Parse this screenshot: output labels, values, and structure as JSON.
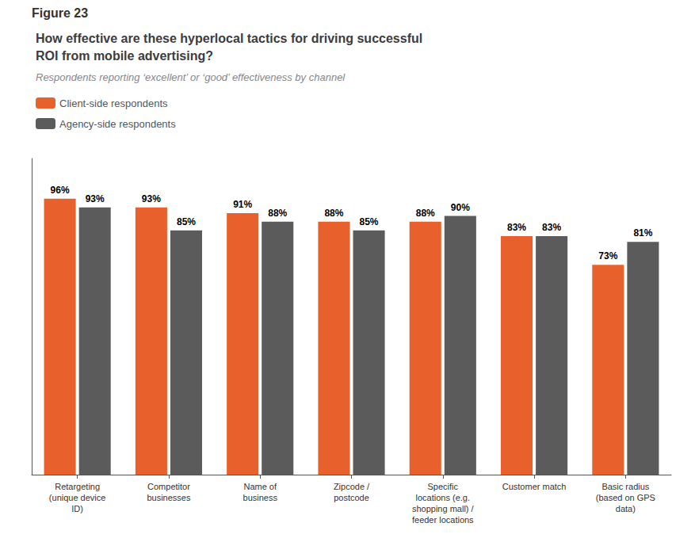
{
  "chart_data": {
    "type": "bar",
    "annotations": [
      "Figure 23"
    ],
    "title": "How effective are these hyperlocal tactics for driving successful\nROI from mobile advertising?",
    "subtitle": "Respondents reporting ‘excellent’ or ‘good’ effectiveness by channel",
    "categories": [
      "Retargeting\n(unique device\nID)",
      "Competitor\nbusinesses",
      "Name of\nbusiness",
      "Zipcode /\npostcode",
      "Specific\nlocations (e.g.\nshopping mall) /\nfeeder locations",
      "Customer match",
      "Basic radius\n(based on GPS\ndata)"
    ],
    "series": [
      {
        "name": "Client-side respondents",
        "color": "#E8612C",
        "values": [
          96,
          93,
          91,
          88,
          88,
          83,
          73
        ],
        "value_labels": [
          "96%",
          "93%",
          "91%",
          "88%",
          "88%",
          "83%",
          "73%"
        ]
      },
      {
        "name": "Agency-side respondents",
        "color": "#5B5B5B",
        "values": [
          93,
          85,
          88,
          85,
          90,
          83,
          81
        ],
        "value_labels": [
          "93%",
          "85%",
          "88%",
          "85%",
          "90%",
          "83%",
          "81%"
        ]
      }
    ],
    "ylim": [
      0,
      110
    ],
    "grid": false,
    "legend": "upper left",
    "data_labels": true,
    "tick_labels": "x"
  }
}
